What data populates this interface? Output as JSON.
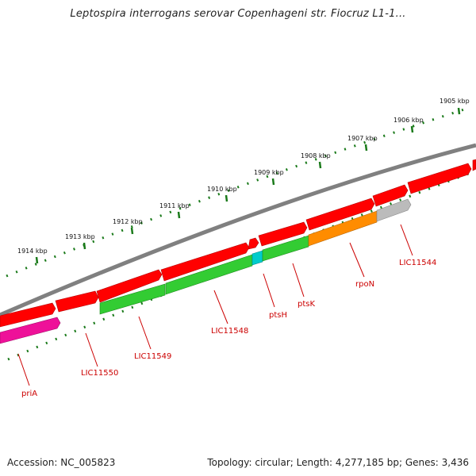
{
  "title": "Leptospira interrogans serovar Copenhageni str. Fiocruz L1-1...",
  "footer": {
    "accession": "Accession: NC_005823",
    "summary": "Topology: circular; Length: 4,277,185 bp; Genes: 3,436"
  },
  "kbp_ticks": [
    "1905 kbp",
    "1906 kbp",
    "1907 kbp",
    "1908 kbp",
    "1909 kbp",
    "1910 kbp",
    "1911 kbp",
    "1912 kbp",
    "1913 kbp",
    "1914 kbp"
  ],
  "gene_labels": [
    "LIC11544",
    "rpoN",
    "ptsK",
    "ptsH",
    "LIC11548",
    "LIC11549",
    "LIC11550",
    "priA"
  ],
  "colors": {
    "backbone": "#808080",
    "cds": "#ff0000",
    "gene_green": "#33cc33",
    "gene_orange": "#ff8c00",
    "gene_cyan": "#00cccc",
    "gene_grey": "#bbbbbb",
    "gene_magenta": "#ee1199",
    "tick": "#1a7a1a",
    "label": "#cc0000"
  }
}
